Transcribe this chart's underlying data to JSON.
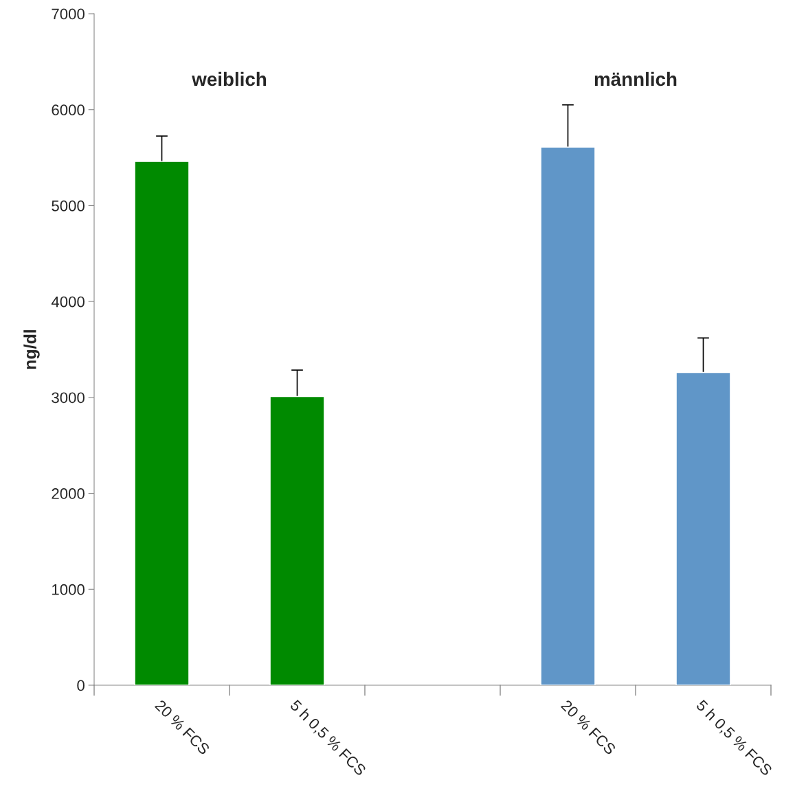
{
  "chart_data": {
    "type": "bar",
    "ylabel": "ng/dl",
    "categories": [
      "20 % FCS",
      "5 h 0,5 % FCS",
      null,
      "20 % FCS",
      "5 h 0,5 % FCS"
    ],
    "values": [
      5460,
      3010,
      null,
      5610,
      3260
    ],
    "errors": [
      265,
      275,
      null,
      440,
      360
    ],
    "colors": [
      "#008a00",
      "#008a00",
      null,
      "#6096c8",
      "#6096c8"
    ],
    "annotations": [
      "weiblich",
      "männlich"
    ],
    "ylim": [
      0,
      7000
    ],
    "yticks": [
      0,
      1000,
      2000,
      3000,
      4000,
      5000,
      6000,
      7000
    ],
    "grid": false,
    "legend": false
  }
}
